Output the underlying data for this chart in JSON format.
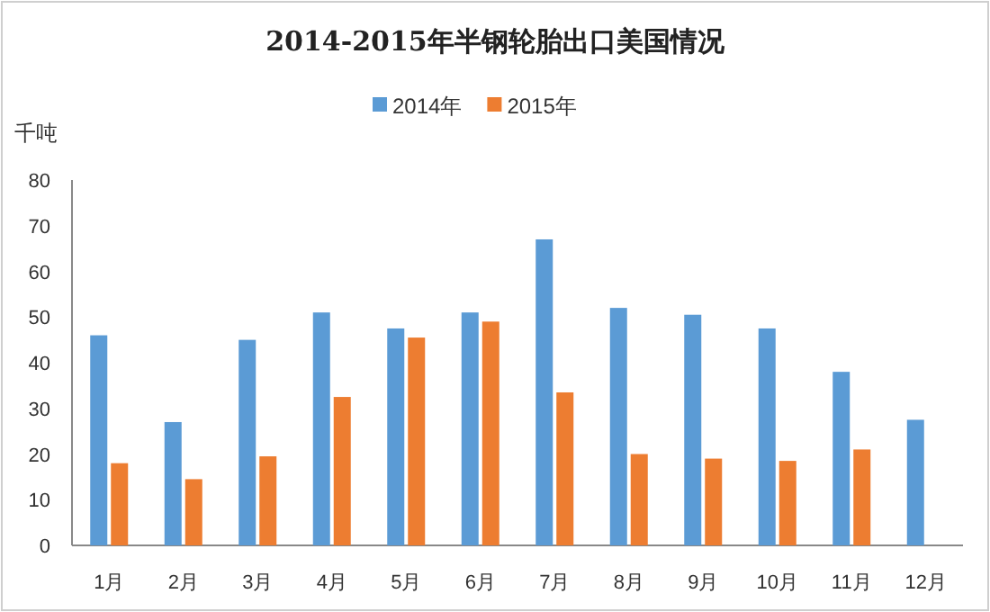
{
  "chart_data": {
    "type": "bar",
    "title": "2014-2015年半钢轮胎出口美国情况",
    "ylabel": "千吨",
    "categories": [
      "1月",
      "2月",
      "3月",
      "4月",
      "5月",
      "6月",
      "7月",
      "8月",
      "9月",
      "10月",
      "11月",
      "12月"
    ],
    "series": [
      {
        "name": "2014年",
        "color": "#5b9bd5",
        "values": [
          46,
          27,
          45,
          51,
          47.5,
          51,
          67,
          52,
          50.5,
          47.5,
          38,
          27.5
        ]
      },
      {
        "name": "2015年",
        "color": "#ed7d31",
        "values": [
          18,
          14.5,
          19.5,
          32.5,
          45.5,
          49,
          33.5,
          20,
          19,
          18.5,
          21,
          null
        ]
      }
    ],
    "ylim": [
      0,
      80
    ],
    "yticks": [
      0,
      10,
      20,
      30,
      40,
      50,
      60,
      70,
      80
    ],
    "grid": false,
    "legend": "top"
  }
}
